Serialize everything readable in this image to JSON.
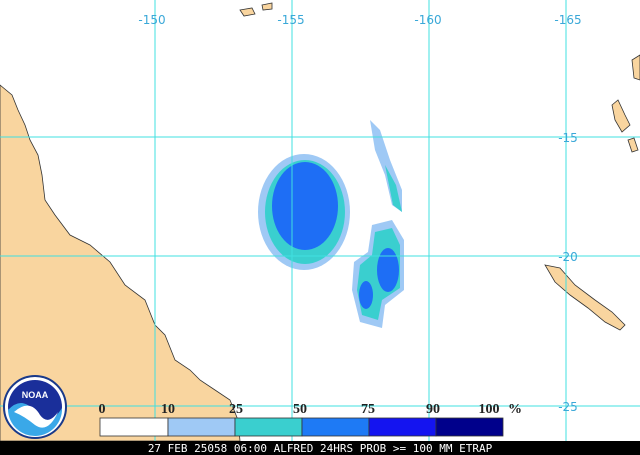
{
  "map": {
    "longitude_labels": [
      "-150",
      "-155",
      "-160",
      "-165"
    ],
    "latitude_labels": [
      "-15",
      "-20",
      "-25"
    ],
    "legend": {
      "labels": [
        "0",
        "10",
        "25",
        "50",
        "75",
        "90",
        "100"
      ],
      "unit": "%"
    },
    "logo": "NOAA",
    "caption": "27 FEB 25058 06:00 ALFRED 24HRS PROB >= 100 MM ETRAP"
  }
}
